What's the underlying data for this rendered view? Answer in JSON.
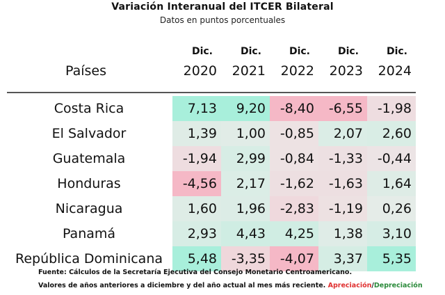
{
  "title": "Variación Interanual del ITCER Bilateral",
  "subtitle": "Datos en puntos porcentuales",
  "header": {
    "row_label": "Países",
    "columns": [
      {
        "top": "Dic.",
        "year": "2020"
      },
      {
        "top": "Dic.",
        "year": "2021"
      },
      {
        "top": "Dic.",
        "year": "2022"
      },
      {
        "top": "Dic.",
        "year": "2023"
      },
      {
        "top": "Dic.",
        "year": "2024"
      }
    ]
  },
  "chart_data": {
    "type": "heatmap",
    "title": "Variación Interanual del ITCER Bilateral",
    "subtitle": "Datos en puntos porcentuales",
    "x": [
      "Dic. 2020",
      "Dic. 2021",
      "Dic. 2022",
      "Dic. 2023",
      "Dic. 2024"
    ],
    "y": [
      "Costa Rica",
      "El Salvador",
      "Guatemala",
      "Honduras",
      "Nicaragua",
      "Panamá",
      "República Dominicana"
    ],
    "values": [
      [
        7.13,
        9.2,
        -8.4,
        -6.55,
        -1.98
      ],
      [
        1.39,
        1.0,
        -0.85,
        2.07,
        2.6
      ],
      [
        -1.94,
        2.99,
        -0.84,
        -1.33,
        -0.44
      ],
      [
        -4.56,
        2.17,
        -1.62,
        -1.63,
        1.64
      ],
      [
        1.6,
        1.96,
        -2.83,
        -1.19,
        0.26
      ],
      [
        2.93,
        4.43,
        4.25,
        1.38,
        3.1
      ],
      [
        5.48,
        -3.35,
        -4.07,
        3.37,
        5.35
      ]
    ],
    "display": [
      [
        "7,13",
        "9,20",
        "-8,40",
        "-6,55",
        "-1,98"
      ],
      [
        "1,39",
        "1,00",
        "-0,85",
        "2,07",
        "2,60"
      ],
      [
        "-1,94",
        "2,99",
        "-0,84",
        "-1,33",
        "-0,44"
      ],
      [
        "-4,56",
        "2,17",
        "-1,62",
        "-1,63",
        "1,64"
      ],
      [
        "1,60",
        "1,96",
        "-2,83",
        "-1,19",
        "0,26"
      ],
      [
        "2,93",
        "4,43",
        "4,25",
        "1,38",
        "3,10"
      ],
      [
        "5,48",
        "-3,35",
        "-4,07",
        "3,37",
        "5,35"
      ]
    ],
    "colors": {
      "positive": "#a8efdb",
      "negative": "#f5b8c6",
      "neutral": "#e8e4e4"
    }
  },
  "footer": {
    "source": "Fuente: Cálculos de la Secretaría Ejecutiva del Consejo Monetario Centroamericano.",
    "note": "Valores de años anteriores a diciembre y del año actual al mes más reciente.",
    "appreciation": "Apreciación",
    "separator": "/",
    "depreciation": "Depreciación"
  }
}
